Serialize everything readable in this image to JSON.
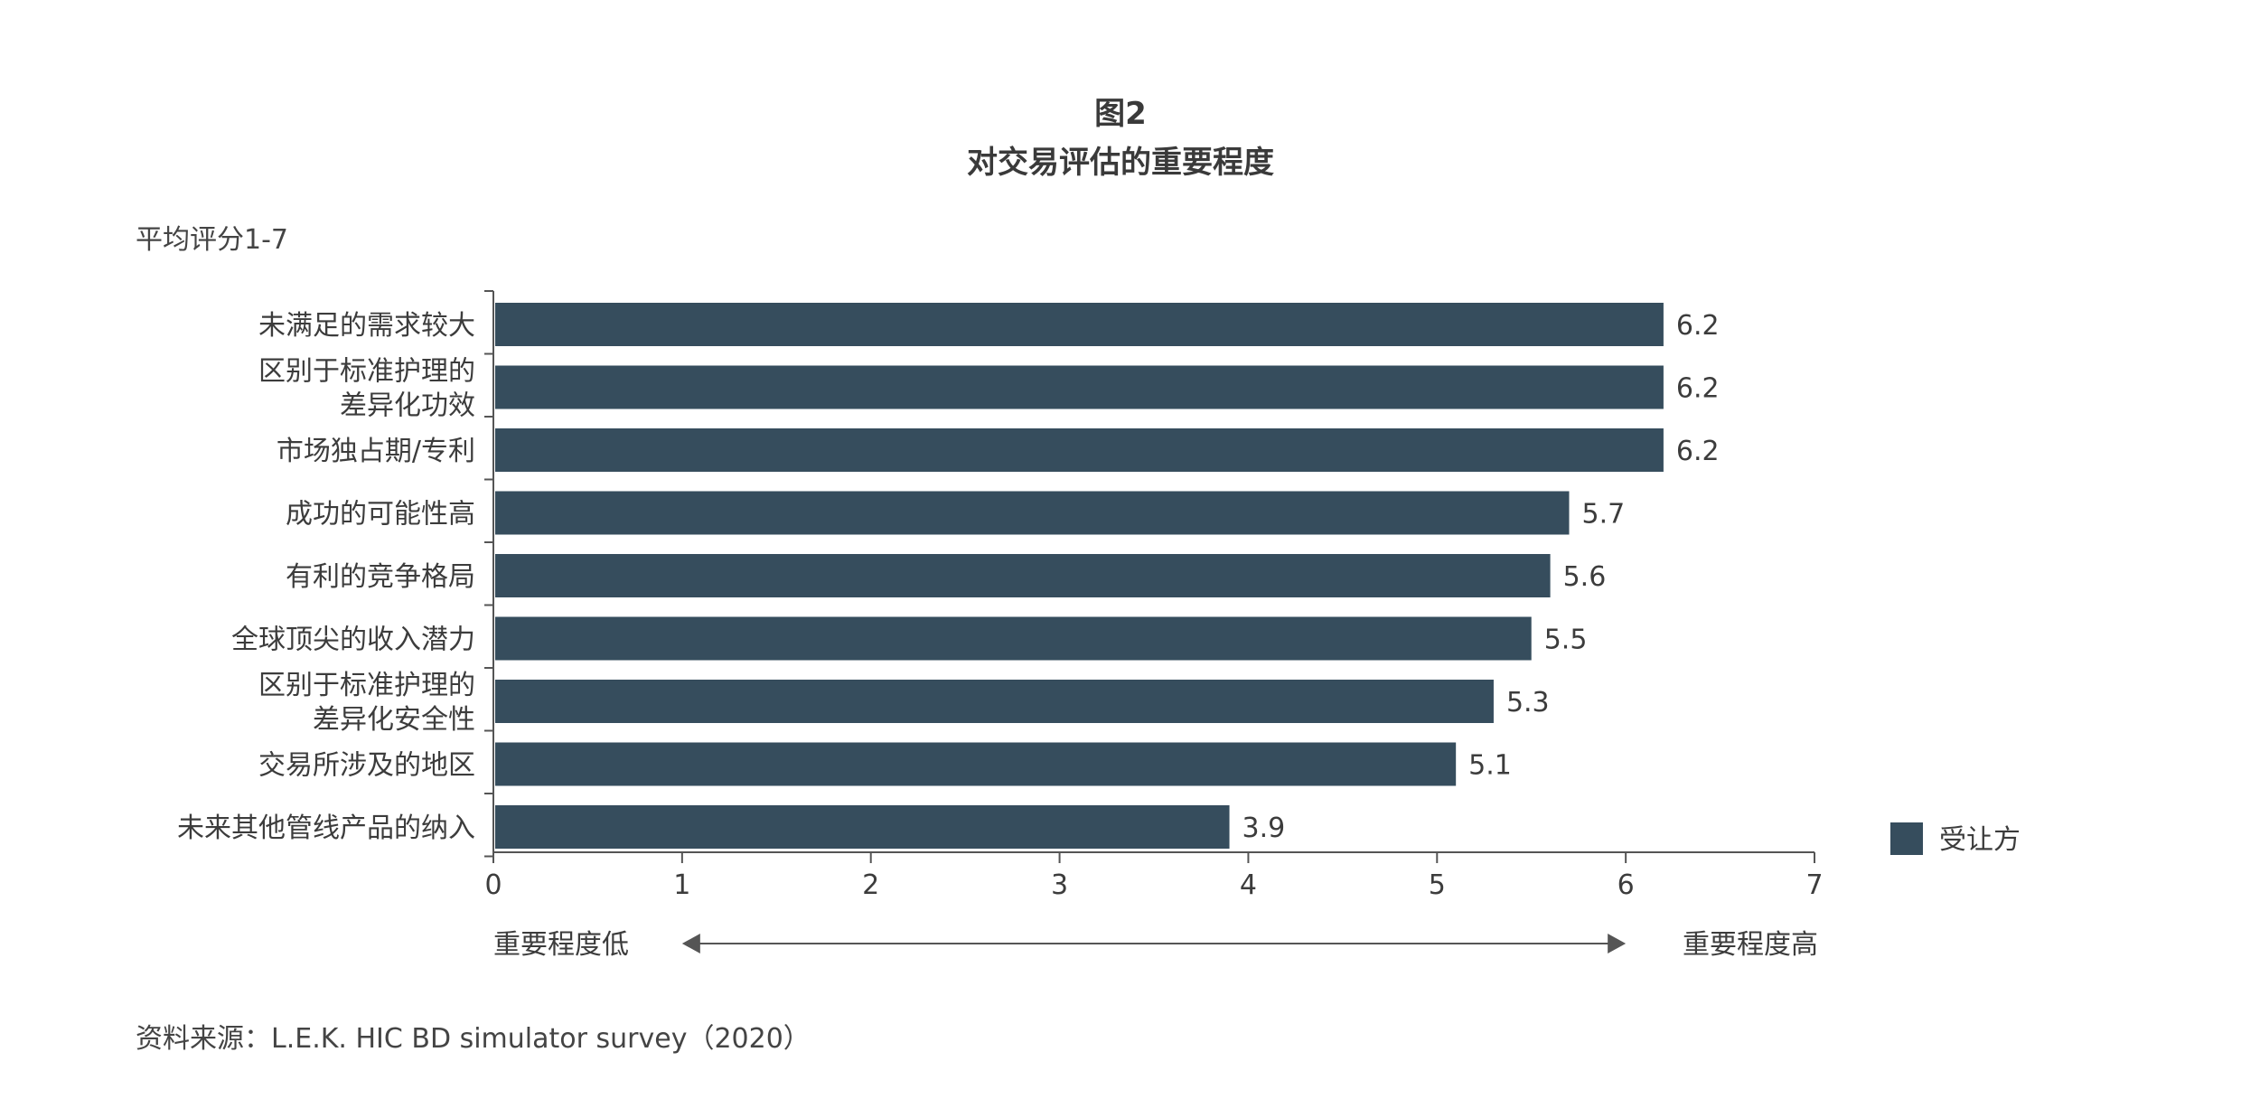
{
  "figure_label": "图2",
  "source": "资料来源：L.E.K. HIC BD simulator survey（2020）",
  "colors": {
    "bar": "#364d5d",
    "axis": "#555555",
    "text": "#3c3c3c"
  },
  "chart_data": {
    "type": "bar",
    "orientation": "horizontal",
    "title": "对交易评估的重要程度",
    "ylabel": "平均评分1-7",
    "categories": [
      [
        "未满足的需求较大"
      ],
      [
        "区别于标准护理的",
        "差异化功效"
      ],
      [
        "市场独占期/专利"
      ],
      [
        "成功的可能性高"
      ],
      [
        "有利的竞争格局"
      ],
      [
        "全球顶尖的收入潜力"
      ],
      [
        "区别于标准护理的",
        "差异化安全性"
      ],
      [
        "交易所涉及的地区"
      ],
      [
        "未来其他管线产品的纳入"
      ]
    ],
    "series": [
      {
        "name": "受让方",
        "values": [
          6.2,
          6.2,
          6.2,
          5.7,
          5.6,
          5.5,
          5.3,
          5.1,
          3.9
        ]
      }
    ],
    "xlim": [
      0,
      7
    ],
    "xticks": [
      "0",
      "1",
      "2",
      "3",
      "4",
      "5",
      "6",
      "7"
    ],
    "axis_note_low": "重要程度低",
    "axis_note_high": "重要程度高",
    "legend_position": "right",
    "grid": false
  }
}
